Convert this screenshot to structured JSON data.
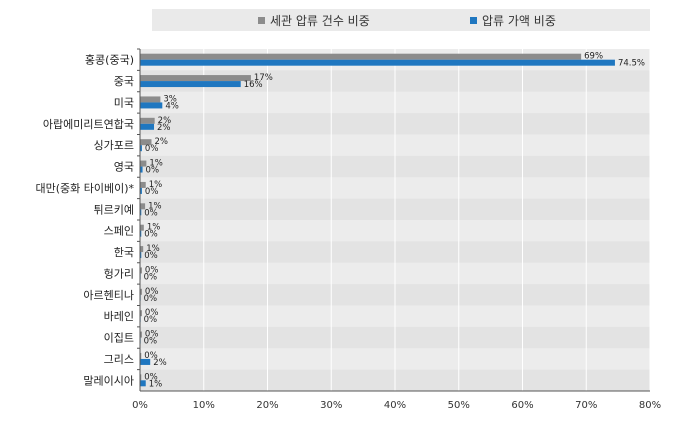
{
  "chart_data": {
    "type": "bar",
    "orientation": "horizontal",
    "categories": [
      "홍콩(중국)",
      "중국",
      "미국",
      "아랍에미리트연합국",
      "싱가포르",
      "영국",
      "대만(중화 타이베이)*",
      "튀르키예",
      "스페인",
      "한국",
      "헝가리",
      "아르헨티나",
      "바레인",
      "이집트",
      "그리스",
      "말레이시아"
    ],
    "series": [
      {
        "name": "세관 압류 건수 비중",
        "color": "#8c8c8c",
        "values": [
          69.2,
          17.4,
          3.2,
          2.3,
          1.8,
          1.0,
          0.9,
          0.8,
          0.6,
          0.5,
          0.3,
          0.3,
          0.3,
          0.3,
          0.2,
          0.2
        ],
        "labels": [
          "69%",
          "17%",
          "3%",
          "2%",
          "2%",
          "1%",
          "1%",
          "1%",
          "1%",
          "1%",
          "0%",
          "0%",
          "0%",
          "0%",
          "0%",
          "0%"
        ]
      },
      {
        "name": "압류 가액 비중",
        "color": "#1f77c0",
        "values": [
          74.5,
          15.8,
          3.5,
          2.2,
          0.3,
          0.4,
          0.3,
          0.2,
          0.2,
          0.2,
          0.1,
          0.1,
          0.1,
          0.1,
          1.6,
          0.9
        ],
        "labels": [
          "74.5%",
          "16%",
          "4%",
          "2%",
          "0%",
          "0%",
          "0%",
          "0%",
          "0%",
          "0%",
          "0%",
          "0%",
          "0%",
          "0%",
          "2%",
          "1%"
        ]
      }
    ],
    "xlim": [
      0,
      80
    ],
    "xticks": [
      0,
      10,
      20,
      30,
      40,
      50,
      60,
      70,
      80
    ],
    "xtick_labels": [
      "0%",
      "10%",
      "20%",
      "30%",
      "40%",
      "50%",
      "60%",
      "70%",
      "80%"
    ],
    "grid": true,
    "legend_position": "top"
  }
}
